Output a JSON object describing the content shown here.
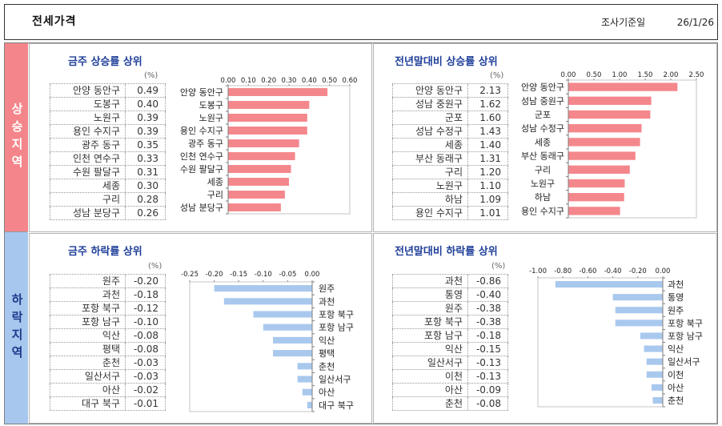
{
  "header": {
    "title": "전세가격",
    "date_label": "조사기준일",
    "date": "26/1/26"
  },
  "sections": {
    "rise": "상승지역",
    "fall": "하락지역"
  },
  "colors": {
    "rise_band": "#f4868b",
    "fall_band": "#a7c7ee",
    "rise_bar": "#f4878c",
    "fall_bar": "#a9c8ee",
    "panel_title": "#1f3f99",
    "rise_band_text": "#ffffff",
    "fall_band_text": "#1c3a8a"
  },
  "panels": [
    {
      "title": "금주 상승률 상위",
      "unit": "(%)",
      "rows": [
        {
          "name": "안양 동안구",
          "value": "0.49"
        },
        {
          "name": "도봉구",
          "value": "0.40"
        },
        {
          "name": "노원구",
          "value": "0.39"
        },
        {
          "name": "용인 수지구",
          "value": "0.39"
        },
        {
          "name": "광주 동구",
          "value": "0.35"
        },
        {
          "name": "인천 연수구",
          "value": "0.33"
        },
        {
          "name": "수원 팔달구",
          "value": "0.31"
        },
        {
          "name": "세종",
          "value": "0.30"
        },
        {
          "name": "구리",
          "value": "0.28"
        },
        {
          "name": "성남 분당구",
          "value": "0.26"
        }
      ]
    },
    {
      "title": "전년말대비 상승률 상위",
      "unit": "(%)",
      "rows": [
        {
          "name": "안양 동안구",
          "value": "2.13"
        },
        {
          "name": "성남 중원구",
          "value": "1.62"
        },
        {
          "name": "군포",
          "value": "1.60"
        },
        {
          "name": "성남 수정구",
          "value": "1.43"
        },
        {
          "name": "세종",
          "value": "1.40"
        },
        {
          "name": "부산 동래구",
          "value": "1.31"
        },
        {
          "name": "구리",
          "value": "1.20"
        },
        {
          "name": "노원구",
          "value": "1.10"
        },
        {
          "name": "하남",
          "value": "1.09"
        },
        {
          "name": "용인 수지구",
          "value": "1.01"
        }
      ]
    },
    {
      "title": "금주 하락률 상위",
      "unit": "(%)",
      "rows": [
        {
          "name": "원주",
          "value": "-0.20"
        },
        {
          "name": "과천",
          "value": "-0.18"
        },
        {
          "name": "포항 북구",
          "value": "-0.12"
        },
        {
          "name": "포항 남구",
          "value": "-0.10"
        },
        {
          "name": "익산",
          "value": "-0.08"
        },
        {
          "name": "평택",
          "value": "-0.08"
        },
        {
          "name": "춘천",
          "value": "-0.03"
        },
        {
          "name": "일산서구",
          "value": "-0.03"
        },
        {
          "name": "아산",
          "value": "-0.02"
        },
        {
          "name": "대구 북구",
          "value": "-0.01"
        }
      ]
    },
    {
      "title": "전년말대비 하락률 상위",
      "unit": "(%)",
      "rows": [
        {
          "name": "과천",
          "value": "-0.86"
        },
        {
          "name": "통영",
          "value": "-0.40"
        },
        {
          "name": "원주",
          "value": "-0.38"
        },
        {
          "name": "포항 북구",
          "value": "-0.38"
        },
        {
          "name": "포항 남구",
          "value": "-0.18"
        },
        {
          "name": "익산",
          "value": "-0.15"
        },
        {
          "name": "일산서구",
          "value": "-0.13"
        },
        {
          "name": "이천",
          "value": "-0.13"
        },
        {
          "name": "아산",
          "value": "-0.09"
        },
        {
          "name": "춘천",
          "value": "-0.08"
        }
      ]
    }
  ],
  "chart_data": [
    {
      "type": "bar",
      "orientation": "horizontal",
      "label_side": "left",
      "categories": [
        "안양 동안구",
        "도봉구",
        "노원구",
        "용인 수지구",
        "광주 동구",
        "인천 연수구",
        "수원 팔달구",
        "세종",
        "구리",
        "성남 분당구"
      ],
      "values": [
        0.49,
        0.4,
        0.39,
        0.39,
        0.35,
        0.33,
        0.31,
        0.3,
        0.28,
        0.26
      ],
      "xlim": [
        0,
        0.6
      ],
      "xticks": [
        "0.00",
        "0.10",
        "0.20",
        "0.30",
        "0.40",
        "0.50",
        "0.60"
      ],
      "grid": false,
      "legend": "none"
    },
    {
      "type": "bar",
      "orientation": "horizontal",
      "label_side": "left",
      "categories": [
        "안양 동안구",
        "성남 중원구",
        "군포",
        "성남 수정구",
        "세종",
        "부산 동래구",
        "구리",
        "노원구",
        "하남",
        "용인 수지구"
      ],
      "values": [
        2.13,
        1.62,
        1.6,
        1.43,
        1.4,
        1.31,
        1.2,
        1.1,
        1.09,
        1.01
      ],
      "xlim": [
        0,
        2.5
      ],
      "xticks": [
        "0.00",
        "0.50",
        "1.00",
        "1.50",
        "2.00",
        "2.50"
      ],
      "grid": false,
      "legend": "none"
    },
    {
      "type": "bar",
      "orientation": "horizontal",
      "label_side": "right",
      "categories": [
        "원주",
        "과천",
        "포항 북구",
        "포항 남구",
        "익산",
        "평택",
        "춘천",
        "일산서구",
        "아산",
        "대구 북구"
      ],
      "values": [
        -0.2,
        -0.18,
        -0.12,
        -0.1,
        -0.08,
        -0.08,
        -0.03,
        -0.03,
        -0.02,
        -0.01
      ],
      "xlim": [
        -0.25,
        0
      ],
      "xticks": [
        "-0.25",
        "-0.20",
        "-0.15",
        "-0.10",
        "-0.05",
        "0.00"
      ],
      "grid": false,
      "legend": "none"
    },
    {
      "type": "bar",
      "orientation": "horizontal",
      "label_side": "right",
      "categories": [
        "과천",
        "통영",
        "원주",
        "포항 북구",
        "포항 남구",
        "익산",
        "일산서구",
        "이천",
        "아산",
        "춘천"
      ],
      "values": [
        -0.86,
        -0.4,
        -0.38,
        -0.38,
        -0.18,
        -0.15,
        -0.13,
        -0.13,
        -0.09,
        -0.08
      ],
      "xlim": [
        -1,
        0
      ],
      "xticks": [
        "-1.00",
        "-0.80",
        "-0.60",
        "-0.40",
        "-0.20",
        "0.00"
      ],
      "grid": false,
      "legend": "none"
    }
  ]
}
